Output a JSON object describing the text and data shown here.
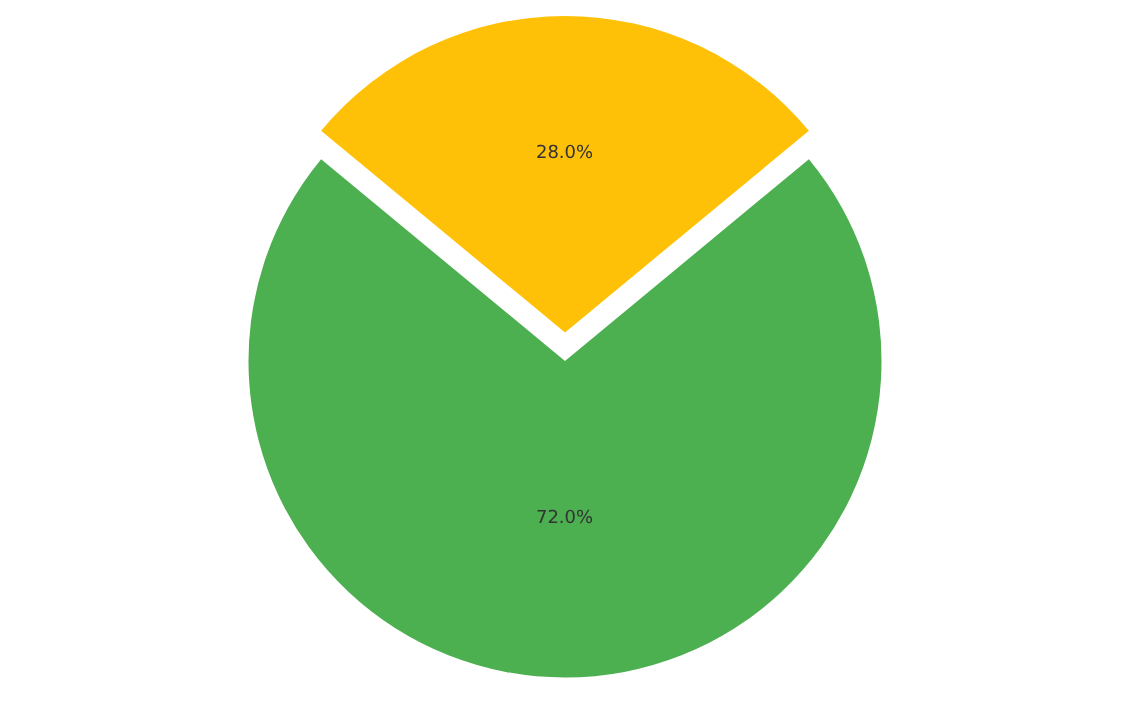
{
  "chart_data": {
    "type": "pie",
    "categories": [
      null,
      null
    ],
    "values": [
      28,
      72
    ],
    "colors": [
      "#ffc107",
      "#4caf50"
    ],
    "value_labels": [
      "28.0%",
      "72.0%"
    ],
    "legend": false
  }
}
